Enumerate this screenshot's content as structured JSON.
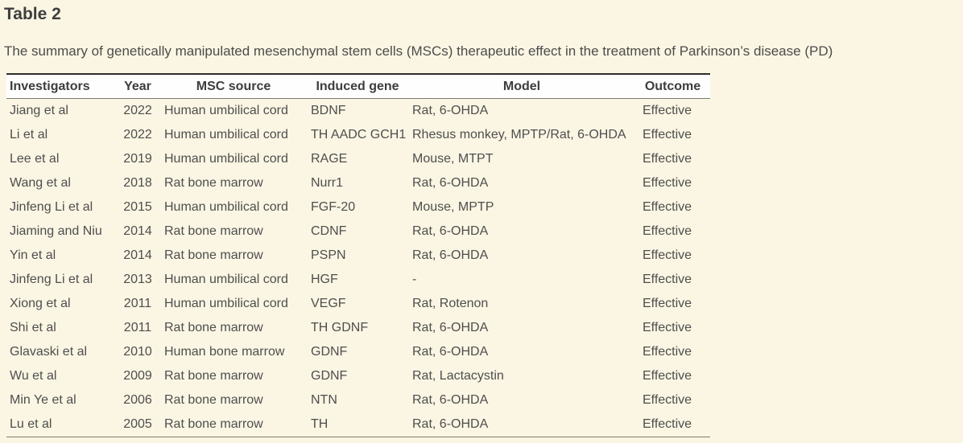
{
  "page": {
    "title": "Table 2",
    "caption": "The summary of genetically manipulated mesenchymal stem cells (MSCs) therapeutic effect in the treatment of Parkinson’s disease (PD)"
  },
  "table": {
    "columns": [
      "Investigators",
      "Year",
      "MSC source",
      "Induced gene",
      "Model",
      "Outcome"
    ],
    "rows": [
      [
        "Jiang et al",
        "2022",
        "Human umbilical cord",
        "BDNF",
        "Rat, 6-OHDA",
        "Effective"
      ],
      [
        "Li et al",
        "2022",
        "Human umbilical cord",
        "TH AADC GCH1",
        "Rhesus monkey, MPTP/Rat, 6-OHDA",
        "Effective"
      ],
      [
        "Lee et al",
        "2019",
        "Human umbilical cord",
        "RAGE",
        "Mouse, MTPT",
        "Effective"
      ],
      [
        "Wang et al",
        "2018",
        "Rat bone marrow",
        "Nurr1",
        "Rat, 6-OHDA",
        "Effective"
      ],
      [
        "Jinfeng Li et al",
        "2015",
        "Human umbilical cord",
        "FGF-20",
        "Mouse, MPTP",
        "Effective"
      ],
      [
        "Jiaming and Niu",
        "2014",
        "Rat bone marrow",
        "CDNF",
        "Rat, 6-OHDA",
        "Effective"
      ],
      [
        "Yin et al",
        "2014",
        "Rat bone marrow",
        "PSPN",
        "Rat, 6-OHDA",
        "Effective"
      ],
      [
        "Jinfeng Li et al",
        "2013",
        "Human umbilical cord",
        "HGF",
        "-",
        "Effective"
      ],
      [
        "Xiong et al",
        "2011",
        "Human umbilical cord",
        "VEGF",
        "Rat, Rotenon",
        "Effective"
      ],
      [
        "Shi et al",
        "2011",
        "Rat bone marrow",
        "TH GDNF",
        "Rat, 6-OHDA",
        "Effective"
      ],
      [
        "Glavaski et al",
        "2010",
        "Human bone marrow",
        "GDNF",
        "Rat, 6-OHDA",
        "Effective"
      ],
      [
        "Wu et al",
        "2009",
        "Rat bone marrow",
        "GDNF",
        "Rat, Lactacystin",
        "Effective"
      ],
      [
        "Min Ye et al",
        "2006",
        "Rat bone marrow",
        "NTN",
        "Rat, 6-OHDA",
        "Effective"
      ],
      [
        "Lu et al",
        "2005",
        "Rat bone marrow",
        "TH",
        "Rat, 6-OHDA",
        "Effective"
      ]
    ]
  },
  "colors": {
    "page_background": "#fbf6e3",
    "header_background": "#fefefe",
    "border_dark": "#2e2e2e",
    "border_light": "#7a7a72",
    "text_body": "#4e4e4e",
    "text_heading": "#3d3d3d"
  }
}
